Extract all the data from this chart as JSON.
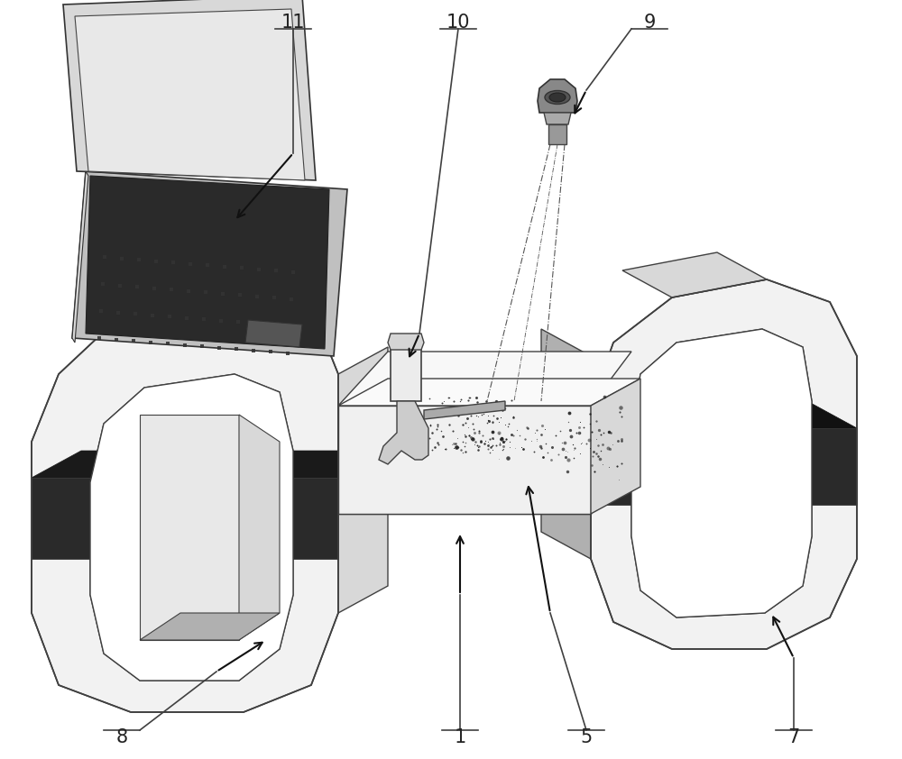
{
  "bg_color": "#ffffff",
  "lc": "#404040",
  "dark_band_color": "#2a2a2a",
  "mid_gray": "#888888",
  "face_light": "#f2f2f2",
  "face_mid": "#d8d8d8",
  "face_dark": "#b0b0b0",
  "label_color": "#222222",
  "label_fontsize": 15,
  "arrow_color": "#111111"
}
